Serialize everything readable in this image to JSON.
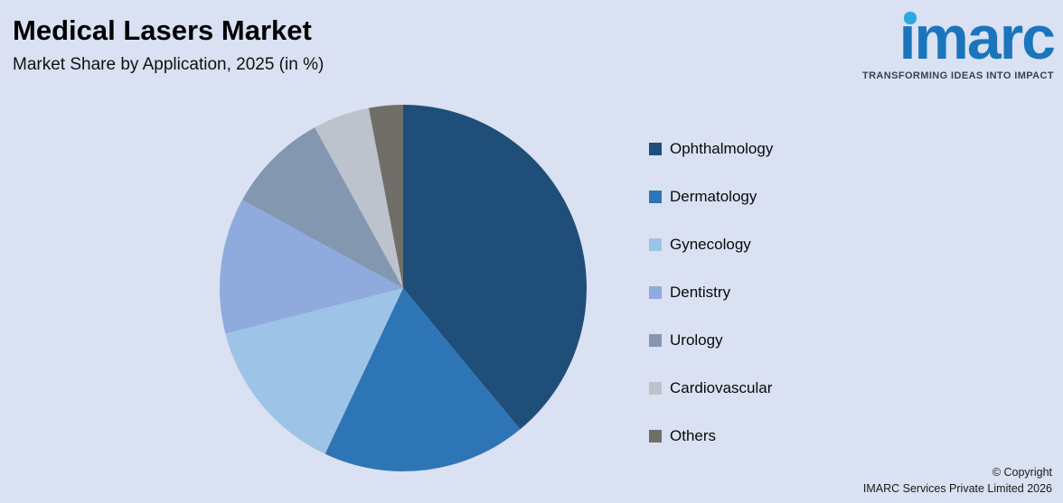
{
  "header": {
    "title": "Medical Lasers Market",
    "subtitle": "Market Share by Application, 2025 (in %)"
  },
  "logo": {
    "wordmark": "imarc",
    "tagline": "TRANSFORMING IDEAS INTO IMPACT",
    "brand_blue": "#1b75bc",
    "brand_cyan": "#29abe2"
  },
  "footer": {
    "copyright_line1": "© Copyright",
    "copyright_line2": "IMARC Services Private Limited 2026"
  },
  "chart_data": {
    "type": "pie",
    "title": "Medical Lasers Market",
    "subtitle": "Market Share by Application, 2025 (in %)",
    "start_angle_deg": 0,
    "direction": "clockwise",
    "legend_position": "right",
    "data_labels": false,
    "categories": [
      "Ophthalmology",
      "Dermatology",
      "Gynecology",
      "Dentistry",
      "Urology",
      "Cardiovascular",
      "Others"
    ],
    "values": [
      39,
      18,
      14,
      12,
      9,
      5,
      3
    ],
    "colors": [
      "#1f4e79",
      "#2e75b6",
      "#9dc3e6",
      "#8faadc",
      "#8497b0",
      "#bcc3cd",
      "#716e69"
    ],
    "background": "#d9e1f2"
  }
}
